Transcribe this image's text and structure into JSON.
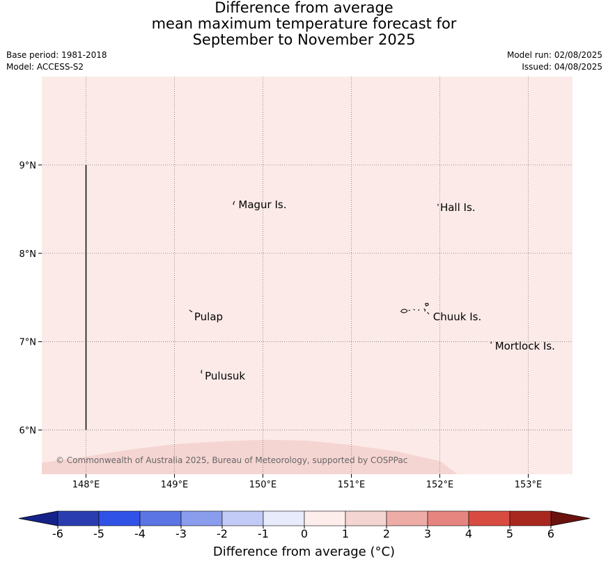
{
  "title": {
    "line1": "Difference from average",
    "line2": "mean maximum temperature forecast for",
    "line3": "September to November 2025"
  },
  "meta": {
    "base_period": "Base period: 1981-2018",
    "model": "Model: ACCESS-S2",
    "model_run": "Model run: 02/08/2025",
    "issued": "Issued: 04/08/2025"
  },
  "map": {
    "lon_range": [
      147.5,
      153.5
    ],
    "lat_range": [
      5.5,
      10.0
    ],
    "lon_ticks": [
      {
        "value": 148,
        "label": "148°E"
      },
      {
        "value": 149,
        "label": "149°E"
      },
      {
        "value": 150,
        "label": "150°E"
      },
      {
        "value": 151,
        "label": "151°E"
      },
      {
        "value": 152,
        "label": "152°E"
      },
      {
        "value": 153,
        "label": "153°E"
      }
    ],
    "lat_ticks": [
      {
        "value": 9,
        "label": "9°N"
      },
      {
        "value": 8,
        "label": "8°N"
      },
      {
        "value": 7,
        "label": "7°N"
      },
      {
        "value": 6,
        "label": "6°N"
      }
    ],
    "base_fill": "#fbeae8",
    "warm_fill": "#f5d5d2",
    "places": [
      {
        "name": "Magur Is.",
        "lon": 149.7,
        "lat": 8.55
      },
      {
        "name": "Hall Is.",
        "lon": 151.98,
        "lat": 8.52
      },
      {
        "name": "Pulap",
        "lon": 149.2,
        "lat": 7.28
      },
      {
        "name": "Chuuk Is.",
        "lon": 151.9,
        "lat": 7.28
      },
      {
        "name": "Mortlock Is.",
        "lon": 152.6,
        "lat": 6.95
      },
      {
        "name": "Pulusuk",
        "lon": 149.32,
        "lat": 6.61
      }
    ],
    "copyright": "© Commonwealth of Australia 2025, Bureau of Meteorology, supported by COSPPac"
  },
  "colorbar": {
    "label": "Difference from average (°C)",
    "ticks": [
      "-6",
      "-5",
      "-4",
      "-3",
      "-2",
      "-1",
      "0",
      "1",
      "2",
      "3",
      "4",
      "5",
      "6"
    ],
    "colors": [
      "#2a3db0",
      "#3152e6",
      "#5b76e4",
      "#8a9cec",
      "#c2cbf5",
      "#e8ebfb",
      "#fdeeec",
      "#f5d5d2",
      "#eeaca6",
      "#e6857f",
      "#d84b40",
      "#a8281f"
    ],
    "under_color": "#152389",
    "over_color": "#6b120e"
  }
}
